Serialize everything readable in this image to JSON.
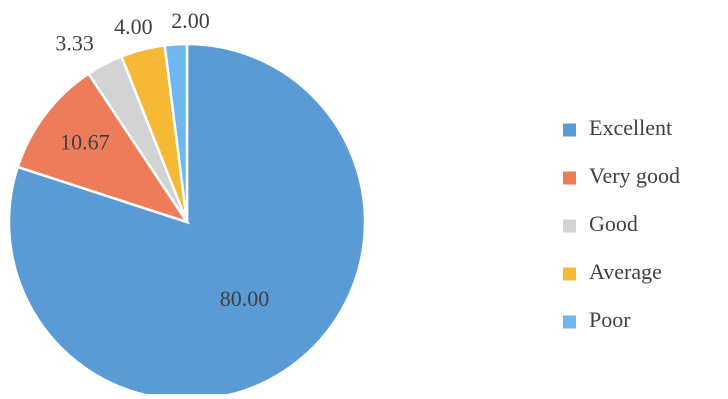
{
  "chart_data": {
    "type": "pie",
    "categories": [
      "Excellent",
      "Very good",
      "Good",
      "Average",
      "Poor"
    ],
    "values": [
      80.0,
      10.67,
      3.33,
      4.0,
      2.0
    ],
    "value_labels": [
      "80.00",
      "10.67",
      "3.33",
      "4.00",
      "2.00"
    ],
    "colors": [
      "#5B9BD5",
      "#ED7D5A",
      "#D3D3D3",
      "#F5B936",
      "#6FB8EE"
    ],
    "start_angle_deg": 0,
    "direction": "clockwise",
    "legend_position": "right",
    "title": ""
  }
}
